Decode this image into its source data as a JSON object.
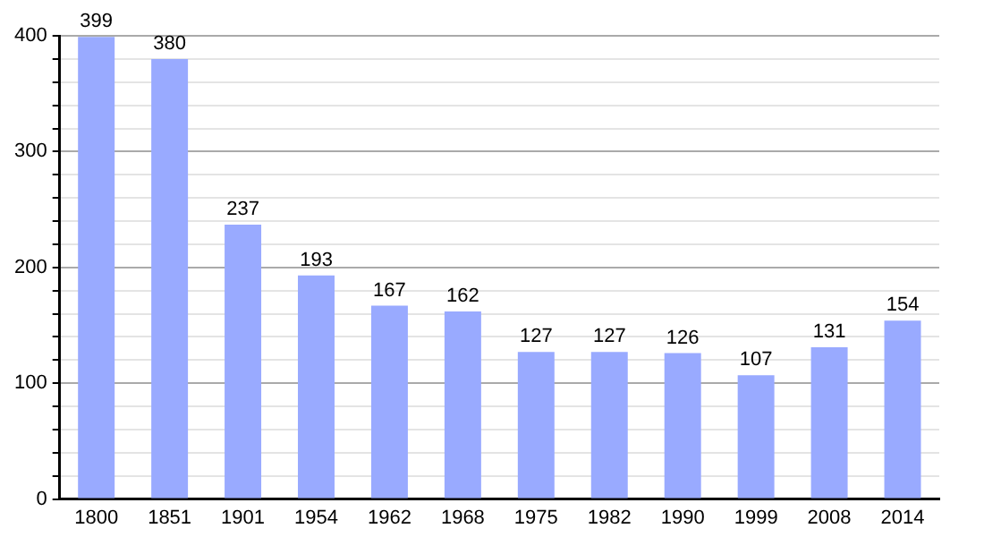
{
  "chart_data": {
    "type": "bar",
    "categories": [
      "1800",
      "1851",
      "1901",
      "1954",
      "1962",
      "1968",
      "1975",
      "1982",
      "1990",
      "1999",
      "2008",
      "2014"
    ],
    "values": [
      399,
      380,
      237,
      193,
      167,
      162,
      127,
      127,
      126,
      107,
      131,
      154
    ],
    "color": "#99aaff",
    "ylim": [
      0,
      400
    ],
    "yticks": [
      0,
      {
        "value": 20,
        "label": null
      },
      {
        "value": 40,
        "label": null
      },
      {
        "value": 60,
        "label": null
      },
      {
        "value": 80,
        "label": null
      },
      100,
      {
        "value": 120,
        "label": null
      },
      {
        "value": 140,
        "label": null
      },
      {
        "value": 160,
        "label": null
      },
      {
        "value": 180,
        "label": null
      },
      200,
      {
        "value": 220,
        "label": null
      },
      {
        "value": 240,
        "label": null
      },
      {
        "value": 260,
        "label": null
      },
      {
        "value": 280,
        "label": null
      },
      300,
      {
        "value": 320,
        "label": null
      },
      {
        "value": 340,
        "label": null
      },
      {
        "value": 360,
        "label": null
      },
      {
        "value": 380,
        "label": null
      },
      400
    ],
    "grid": "y",
    "data_labels": true,
    "legend": false
  }
}
